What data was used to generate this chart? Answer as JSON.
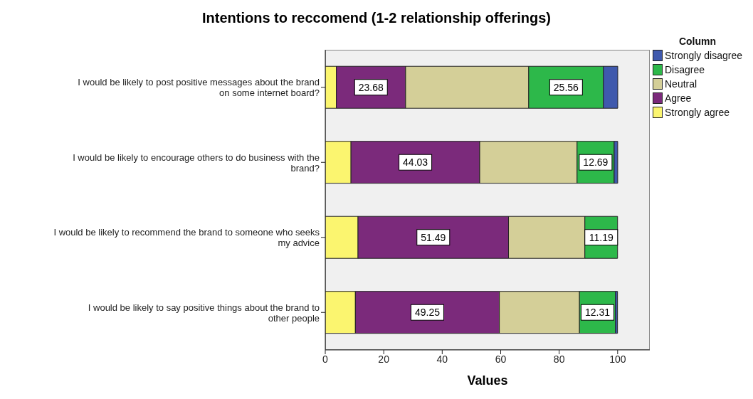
{
  "chart_data": {
    "type": "bar",
    "orientation": "horizontal",
    "stacked": true,
    "title": "Intentions to reccomend (1-2 relationship offerings)",
    "xlabel": "Values",
    "legend_title": "Column",
    "legend": "right",
    "categories": [
      "I would be likely to post positive messages about the brand on some internet board?",
      "I would be likely to encourage others to do business with the brand?",
      "I would be likely to recommend the brand to someone who seeks my advice",
      "I would be likely to say positive things about the brand to other people"
    ],
    "series": [
      {
        "name": "Strongly agree",
        "color": "#fbf56f",
        "values": [
          3.8,
          8.8,
          11.2,
          10.3
        ]
      },
      {
        "name": "Agree",
        "color": "#7b2a7b",
        "values": [
          23.68,
          44.03,
          51.49,
          49.25
        ],
        "value_labels": [
          "23.68",
          "44.03",
          "51.49",
          "49.25"
        ]
      },
      {
        "name": "Neutral",
        "color": "#d4cf98",
        "values": [
          42.1,
          33.3,
          26.1,
          27.4
        ]
      },
      {
        "name": "Disagree",
        "color": "#2db84a",
        "values": [
          25.56,
          12.69,
          11.19,
          12.31
        ],
        "value_labels": [
          "25.56",
          "12.69",
          "11.19",
          "12.31"
        ]
      },
      {
        "name": "Strongly disagree",
        "color": "#3f59ad",
        "values": [
          4.9,
          1.2,
          0,
          0.7
        ]
      }
    ],
    "xlim": [
      0,
      111
    ],
    "xticks": [
      0,
      20,
      40,
      60,
      80,
      100
    ]
  }
}
